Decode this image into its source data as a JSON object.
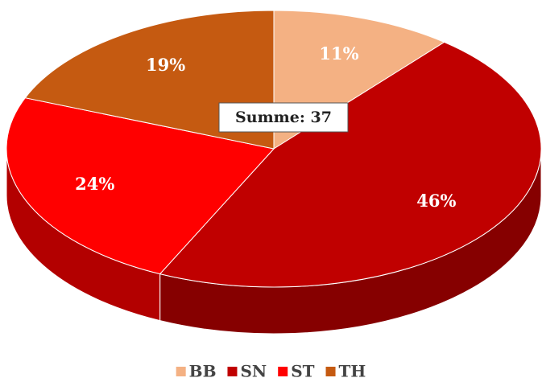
{
  "chart_data": {
    "type": "pie3d",
    "categories": [
      "BB",
      "SN",
      "ST",
      "TH"
    ],
    "values": [
      11,
      46,
      24,
      19
    ],
    "value_labels": [
      "11%",
      "46%",
      "24%",
      "19%"
    ],
    "colors": [
      "#f4b183",
      "#c00000",
      "#ff0000",
      "#c55a11"
    ],
    "annotation": "Summe: 37",
    "legend": "bottom"
  }
}
